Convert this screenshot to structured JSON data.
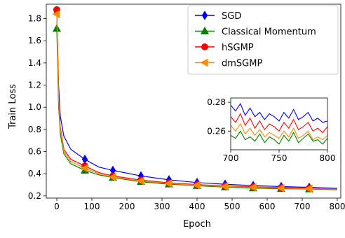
{
  "chart_data": [
    {
      "type": "line",
      "xlabel": "Epoch",
      "ylabel": "Train Loss",
      "xlim": [
        -30,
        810
      ],
      "ylim": [
        0.18,
        1.93
      ],
      "x_ticks": [
        0,
        100,
        200,
        300,
        400,
        500,
        600,
        700,
        800
      ],
      "y_ticks": [
        0.2,
        0.4,
        0.6,
        0.8,
        1.0,
        1.2,
        1.4,
        1.6,
        1.8
      ],
      "legend_position": "top-right",
      "grid": false,
      "series": [
        {
          "name": "SGD",
          "color": "#0000ff",
          "marker": "diamond",
          "x": [
            0,
            5,
            10,
            20,
            40,
            80,
            120,
            160,
            240,
            320,
            400,
            480,
            560,
            640,
            720,
            800
          ],
          "values": [
            1.86,
            1.2,
            0.92,
            0.74,
            0.62,
            0.53,
            0.46,
            0.43,
            0.38,
            0.345,
            0.32,
            0.305,
            0.293,
            0.284,
            0.277,
            0.268
          ],
          "markers_at": [
            0,
            80,
            160,
            240,
            320,
            400,
            480,
            560,
            640,
            720
          ]
        },
        {
          "name": "Classical Momentum",
          "color": "#008000",
          "marker": "triangle-up",
          "x": [
            0,
            5,
            10,
            20,
            40,
            80,
            120,
            160,
            240,
            320,
            400,
            480,
            560,
            640,
            720,
            800
          ],
          "values": [
            1.71,
            1.02,
            0.76,
            0.58,
            0.49,
            0.43,
            0.39,
            0.365,
            0.328,
            0.306,
            0.292,
            0.279,
            0.27,
            0.265,
            0.262,
            0.255
          ],
          "markers_at": [
            0,
            80,
            160,
            240,
            320,
            400,
            480,
            560,
            640,
            720
          ]
        },
        {
          "name": "hSGMP",
          "color": "#ff0000",
          "marker": "circle",
          "x": [
            0,
            5,
            10,
            20,
            40,
            80,
            120,
            160,
            240,
            320,
            400,
            480,
            560,
            640,
            720,
            800
          ],
          "values": [
            1.88,
            1.1,
            0.82,
            0.62,
            0.53,
            0.47,
            0.41,
            0.38,
            0.343,
            0.318,
            0.302,
            0.29,
            0.282,
            0.275,
            0.27,
            0.264
          ],
          "markers_at": [
            0,
            80,
            160,
            240,
            320,
            400,
            480,
            560,
            640,
            720
          ]
        },
        {
          "name": "dmSGMP",
          "color": "#ff8c00",
          "marker": "triangle-left",
          "x": [
            0,
            5,
            10,
            20,
            40,
            80,
            120,
            160,
            240,
            320,
            400,
            480,
            560,
            640,
            720,
            800
          ],
          "values": [
            1.84,
            1.08,
            0.8,
            0.6,
            0.51,
            0.45,
            0.4,
            0.37,
            0.335,
            0.312,
            0.297,
            0.285,
            0.277,
            0.27,
            0.265,
            0.26
          ],
          "markers_at": [
            0,
            80,
            160,
            240,
            320,
            400,
            480,
            560,
            640,
            720
          ]
        }
      ]
    },
    {
      "type": "line",
      "role": "inset",
      "xlim": [
        700,
        800
      ],
      "ylim": [
        0.247,
        0.283
      ],
      "x_ticks": [
        700,
        750,
        800
      ],
      "y_ticks": [
        0.26,
        0.28
      ],
      "series": [
        {
          "name": "SGD",
          "color": "#0000ff",
          "x": [
            700,
            705,
            710,
            715,
            720,
            725,
            730,
            735,
            740,
            745,
            750,
            755,
            760,
            765,
            770,
            775,
            780,
            785,
            790,
            795,
            800
          ],
          "values": [
            0.278,
            0.274,
            0.279,
            0.271,
            0.276,
            0.27,
            0.273,
            0.268,
            0.272,
            0.27,
            0.267,
            0.273,
            0.269,
            0.275,
            0.268,
            0.27,
            0.273,
            0.267,
            0.269,
            0.266,
            0.267
          ]
        },
        {
          "name": "Classical Momentum",
          "color": "#008000",
          "x": [
            700,
            705,
            710,
            715,
            720,
            725,
            730,
            735,
            740,
            745,
            750,
            755,
            760,
            765,
            770,
            775,
            780,
            785,
            790,
            795,
            800
          ],
          "values": [
            0.257,
            0.255,
            0.26,
            0.254,
            0.256,
            0.253,
            0.258,
            0.252,
            0.256,
            0.254,
            0.251,
            0.257,
            0.253,
            0.259,
            0.252,
            0.255,
            0.258,
            0.253,
            0.254,
            0.251,
            0.255
          ]
        },
        {
          "name": "hSGMP",
          "color": "#ff0000",
          "x": [
            700,
            705,
            710,
            715,
            720,
            725,
            730,
            735,
            740,
            745,
            750,
            755,
            760,
            765,
            770,
            775,
            780,
            785,
            790,
            795,
            800
          ],
          "values": [
            0.27,
            0.266,
            0.272,
            0.264,
            0.269,
            0.262,
            0.267,
            0.261,
            0.265,
            0.263,
            0.26,
            0.266,
            0.262,
            0.268,
            0.261,
            0.263,
            0.266,
            0.26,
            0.262,
            0.259,
            0.263
          ]
        },
        {
          "name": "dmSGMP",
          "color": "#ff8c00",
          "x": [
            700,
            705,
            710,
            715,
            720,
            725,
            730,
            735,
            740,
            745,
            750,
            755,
            760,
            765,
            770,
            775,
            780,
            785,
            790,
            795,
            800
          ],
          "values": [
            0.264,
            0.26,
            0.265,
            0.258,
            0.262,
            0.257,
            0.261,
            0.256,
            0.259,
            0.257,
            0.255,
            0.26,
            0.256,
            0.262,
            0.255,
            0.257,
            0.26,
            0.254,
            0.256,
            0.254,
            0.257
          ]
        }
      ]
    }
  ]
}
